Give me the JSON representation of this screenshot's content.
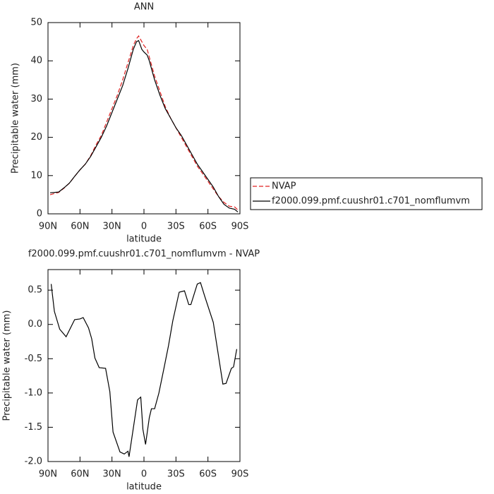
{
  "chart_data": [
    {
      "type": "line",
      "title": "ANN",
      "x_label": "latitude",
      "y_label": "Precipitable water (mm)",
      "x": [
        88,
        80,
        75,
        70,
        65,
        60,
        55,
        50,
        45,
        40,
        35,
        30,
        25,
        20,
        15,
        10,
        7,
        5,
        2,
        0,
        -3,
        -5,
        -10,
        -15,
        -20,
        -25,
        -30,
        -35,
        -40,
        -45,
        -50,
        -55,
        -60,
        -65,
        -70,
        -75,
        -80,
        -85,
        -88
      ],
      "series": [
        {
          "name": "NVAP",
          "color": "#e02020",
          "dash": true,
          "values": [
            5,
            5.6,
            6.7,
            8,
            9.8,
            11.5,
            13,
            15.2,
            18,
            20.5,
            24,
            27.5,
            31,
            35,
            39.5,
            44,
            45.8,
            46.5,
            45,
            44,
            43,
            41,
            36,
            32,
            28,
            25,
            22.5,
            20,
            17.5,
            15,
            12.5,
            10.5,
            8.5,
            6.5,
            4.5,
            3,
            2,
            1.8,
            1
          ]
        },
        {
          "name": "f2000.099.pmf.cuushr01.c701_nomflumvm",
          "color": "#000000",
          "dash": false,
          "values": [
            5.5,
            5.7,
            6.8,
            8,
            9.8,
            11.5,
            13,
            15,
            17.5,
            20,
            23,
            26.5,
            30,
            33.5,
            38,
            43,
            45,
            45.3,
            43,
            42.3,
            41.5,
            40,
            35,
            31,
            27.5,
            25,
            22.5,
            20.5,
            18,
            15.5,
            13,
            11,
            9,
            7,
            4.5,
            2.5,
            1.5,
            1.2,
            0.5
          ]
        }
      ],
      "xlim": [
        90,
        -90
      ],
      "xticks": [
        {
          "value": 90,
          "label": "90N"
        },
        {
          "value": 60,
          "label": "60N"
        },
        {
          "value": 30,
          "label": "30N"
        },
        0,
        {
          "value": -30,
          "label": "30S"
        },
        {
          "value": -60,
          "label": "60S"
        },
        {
          "value": -90,
          "label": "90S"
        }
      ],
      "ylim": [
        0,
        50
      ],
      "yticks": [
        0,
        10,
        20,
        30,
        40,
        50
      ],
      "legend": "right"
    },
    {
      "type": "line",
      "title": "f2000.099.pmf.cuushr01.c701_nomflumvm - NVAP",
      "x_label": "latitude",
      "y_label": "Precipitable water (mm)",
      "x": [
        87,
        84,
        79,
        73,
        65,
        60,
        57,
        52,
        49,
        46,
        42,
        36,
        32,
        29,
        22.5,
        18.5,
        15,
        14,
        6,
        3,
        1,
        -1.5,
        -5,
        -7,
        -10,
        -14,
        -19,
        -23,
        -27,
        -33,
        -38,
        -42,
        -44,
        -50,
        -53,
        -57,
        -65,
        -74,
        -77,
        -82,
        -84,
        -87
      ],
      "series": [
        {
          "name": null,
          "color": "#000000",
          "dash": false,
          "values": [
            0.59,
            0.19,
            -0.07,
            -0.18,
            0.07,
            0.08,
            0.1,
            -0.05,
            -0.21,
            -0.49,
            -0.63,
            -0.64,
            -0.98,
            -1.57,
            -1.86,
            -1.89,
            -1.85,
            -1.93,
            -1.1,
            -1.06,
            -1.53,
            -1.75,
            -1.36,
            -1.23,
            -1.23,
            -1,
            -0.62,
            -0.31,
            0.05,
            0.47,
            0.49,
            0.29,
            0.29,
            0.59,
            0.61,
            0.41,
            0.03,
            -0.87,
            -0.86,
            -0.64,
            -0.62,
            -0.36
          ]
        }
      ],
      "xlim": [
        90,
        -90
      ],
      "xticks": [
        {
          "value": 90,
          "label": "90N"
        },
        {
          "value": 60,
          "label": "60N"
        },
        {
          "value": 30,
          "label": "30N"
        },
        0,
        {
          "value": -30,
          "label": "30S"
        },
        {
          "value": -60,
          "label": "60S"
        },
        {
          "value": -90,
          "label": "90S"
        }
      ],
      "ylim": [
        -2.0,
        0.8
      ],
      "yticks": [
        0.5,
        {
          "value": 0,
          "label": "0.0"
        },
        -0.5,
        {
          "value": -1,
          "label": "-1.0"
        },
        -1.5,
        {
          "value": -2,
          "label": "-2.0"
        }
      ]
    }
  ]
}
